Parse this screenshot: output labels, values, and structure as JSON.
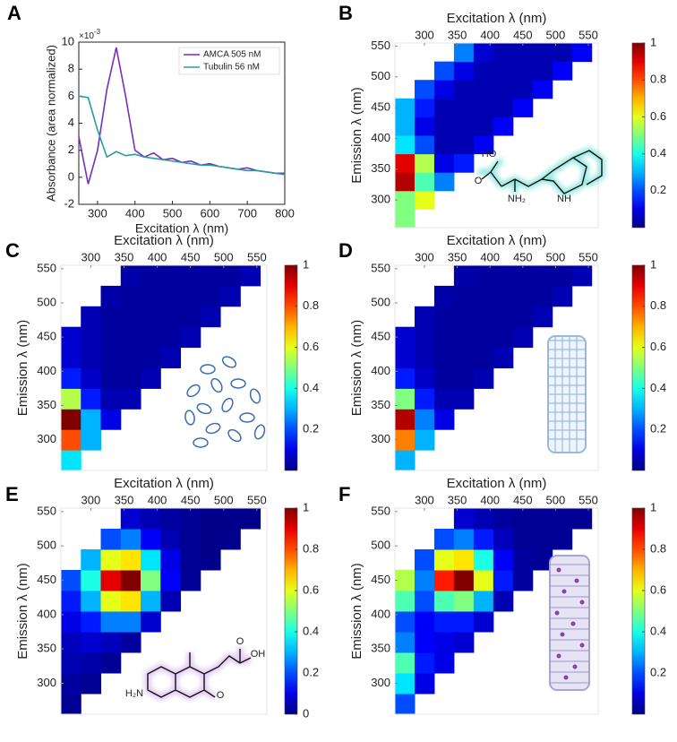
{
  "chart_data": [
    {
      "type": "line",
      "panel_label": "A",
      "x_label": "Excitation λ (nm)",
      "y_label": "Absorbance (area normalized)",
      "y_multiplier": {
        "base": "×10",
        "exponent": "-3"
      },
      "x": [
        250,
        275,
        300,
        325,
        350,
        375,
        400,
        425,
        450,
        475,
        500,
        525,
        550,
        575,
        600,
        625,
        650,
        675,
        700,
        725,
        750,
        775,
        800
      ],
      "series": [
        {
          "name": "AMCA 505 nM",
          "color": "#7a2cc0",
          "values": [
            3,
            -0.5,
            2,
            6.5,
            9.6,
            6,
            2,
            1.5,
            1.8,
            1.3,
            1.4,
            1.1,
            1.2,
            0.9,
            1.0,
            0.8,
            0.7,
            0.6,
            0.7,
            0.5,
            0.4,
            0.3,
            0.3
          ]
        },
        {
          "name": "Tubulin 56 nM",
          "color": "#2a9d9a",
          "values": [
            6,
            5.9,
            3.5,
            1.5,
            1.9,
            1.6,
            1.7,
            1.5,
            1.4,
            1.3,
            1.2,
            1.1,
            1.0,
            0.9,
            0.9,
            0.8,
            0.7,
            0.6,
            0.5,
            0.5,
            0.4,
            0.3,
            0.2
          ]
        }
      ],
      "xlim": [
        250,
        800
      ],
      "xticks": [
        300,
        400,
        500,
        600,
        700,
        800
      ],
      "ylim": [
        -2,
        10
      ],
      "yticks": [
        -2,
        0,
        2,
        4,
        6,
        8,
        10
      ],
      "legend": "upper right"
    },
    {
      "type": "heatmap",
      "panel_label": "B",
      "x_label": "Excitation λ (nm)",
      "y_label": "Emission λ (nm)",
      "x": [
        270,
        300,
        330,
        360,
        390,
        420,
        450,
        480,
        510,
        540
      ],
      "y": [
        270,
        300,
        330,
        360,
        390,
        420,
        450,
        480,
        510,
        540
      ],
      "values": [
        [
          0.5,
          null,
          null,
          null,
          null,
          null,
          null,
          null,
          null,
          null
        ],
        [
          0.5,
          0.6,
          null,
          null,
          null,
          null,
          null,
          null,
          null,
          null
        ],
        [
          0.95,
          0.45,
          0.25,
          null,
          null,
          null,
          null,
          null,
          null,
          null
        ],
        [
          0.9,
          0.55,
          0.1,
          0.15,
          null,
          null,
          null,
          null,
          null,
          null
        ],
        [
          0.35,
          0.2,
          0.05,
          0.05,
          0.12,
          null,
          null,
          null,
          null,
          null
        ],
        [
          0.3,
          0.1,
          0.05,
          0.05,
          0.05,
          0.12,
          null,
          null,
          null,
          null
        ],
        [
          0.3,
          0.15,
          0.05,
          0.05,
          0.05,
          0.05,
          0.12,
          null,
          null,
          null
        ],
        [
          null,
          0.2,
          0.1,
          0.05,
          0.05,
          0.05,
          0.05,
          0.12,
          null,
          null
        ],
        [
          null,
          null,
          0.2,
          0.1,
          0.05,
          0.05,
          0.05,
          0.05,
          0.12,
          null
        ],
        [
          null,
          null,
          null,
          0.25,
          0.08,
          0.05,
          0.05,
          0.05,
          0.05,
          0.12
        ]
      ],
      "xlim": [
        255,
        565
      ],
      "xticks": [
        300,
        350,
        400,
        450,
        500,
        550
      ],
      "ylim": [
        255,
        555
      ],
      "yticks": [
        300,
        350,
        400,
        450,
        500,
        550
      ],
      "colormap": "jet",
      "clim": [
        0,
        1
      ],
      "cticks": [
        0.2,
        0.4,
        0.6,
        0.8,
        1
      ],
      "annotations": [
        "HO",
        "O",
        "NH₂",
        "NH"
      ]
    },
    {
      "type": "heatmap",
      "panel_label": "C",
      "x_label": "Excitation λ (nm)",
      "y_label": "Emission λ (nm)",
      "x": [
        270,
        300,
        330,
        360,
        390,
        420,
        450,
        480,
        510,
        540
      ],
      "y": [
        270,
        300,
        330,
        360,
        390,
        420,
        450,
        480,
        510,
        540
      ],
      "values": [
        [
          0.35,
          null,
          null,
          null,
          null,
          null,
          null,
          null,
          null,
          null
        ],
        [
          0.8,
          0.3,
          null,
          null,
          null,
          null,
          null,
          null,
          null,
          null
        ],
        [
          1,
          0.3,
          0.1,
          null,
          null,
          null,
          null,
          null,
          null,
          null
        ],
        [
          0.55,
          0.15,
          0.05,
          0.05,
          null,
          null,
          null,
          null,
          null,
          null
        ],
        [
          0.15,
          0.07,
          0.03,
          0.03,
          0.05,
          null,
          null,
          null,
          null,
          null
        ],
        [
          0.08,
          0.05,
          0.03,
          0.03,
          0.03,
          0.05,
          null,
          null,
          null,
          null
        ],
        [
          0.08,
          0.05,
          0.03,
          0.03,
          0.03,
          0.03,
          0.05,
          null,
          null,
          null
        ],
        [
          null,
          0.05,
          0.03,
          0.03,
          0.03,
          0.03,
          0.03,
          0.05,
          null,
          null
        ],
        [
          null,
          null,
          0.04,
          0.03,
          0.03,
          0.03,
          0.03,
          0.03,
          0.05,
          null
        ],
        [
          null,
          null,
          null,
          0.04,
          0.03,
          0.03,
          0.03,
          0.03,
          0.03,
          0.05
        ]
      ],
      "xlim": [
        255,
        565
      ],
      "xticks": [
        300,
        350,
        400,
        450,
        500,
        550
      ],
      "ylim": [
        255,
        555
      ],
      "yticks": [
        300,
        350,
        400,
        450,
        500,
        550
      ],
      "colormap": "jet",
      "clim": [
        0,
        1
      ],
      "cticks": [
        0.2,
        0.4,
        0.6,
        0.8,
        1
      ]
    },
    {
      "type": "heatmap",
      "panel_label": "D",
      "x_label": "Excitation λ (nm)",
      "y_label": "Emission λ (nm)",
      "x": [
        270,
        300,
        330,
        360,
        390,
        420,
        450,
        480,
        510,
        540
      ],
      "y": [
        270,
        300,
        330,
        360,
        390,
        420,
        450,
        480,
        510,
        540
      ],
      "values": [
        [
          0.3,
          null,
          null,
          null,
          null,
          null,
          null,
          null,
          null,
          null
        ],
        [
          0.75,
          0.3,
          null,
          null,
          null,
          null,
          null,
          null,
          null,
          null
        ],
        [
          0.95,
          0.25,
          0.1,
          null,
          null,
          null,
          null,
          null,
          null,
          null
        ],
        [
          0.5,
          0.15,
          0.05,
          0.05,
          null,
          null,
          null,
          null,
          null,
          null
        ],
        [
          0.15,
          0.07,
          0.03,
          0.03,
          0.05,
          null,
          null,
          null,
          null,
          null
        ],
        [
          0.08,
          0.05,
          0.03,
          0.03,
          0.03,
          0.05,
          null,
          null,
          null,
          null
        ],
        [
          0.08,
          0.05,
          0.03,
          0.03,
          0.03,
          0.03,
          0.05,
          null,
          null,
          null
        ],
        [
          null,
          0.05,
          0.03,
          0.03,
          0.03,
          0.03,
          0.03,
          0.05,
          null,
          null
        ],
        [
          null,
          null,
          0.04,
          0.03,
          0.03,
          0.03,
          0.03,
          0.03,
          0.05,
          null
        ],
        [
          null,
          null,
          null,
          0.04,
          0.03,
          0.03,
          0.03,
          0.03,
          0.03,
          0.05
        ]
      ],
      "xlim": [
        255,
        565
      ],
      "xticks": [
        300,
        350,
        400,
        450,
        500,
        550
      ],
      "ylim": [
        255,
        555
      ],
      "yticks": [
        300,
        350,
        400,
        450,
        500,
        550
      ],
      "colormap": "jet",
      "clim": [
        0,
        1
      ],
      "cticks": [
        0.2,
        0.4,
        0.6,
        0.8,
        1
      ]
    },
    {
      "type": "heatmap",
      "panel_label": "E",
      "x_label": "Excitation λ (nm)",
      "y_label": "Emission λ (nm)",
      "x": [
        270,
        300,
        330,
        360,
        390,
        420,
        450,
        480,
        510,
        540
      ],
      "y": [
        270,
        300,
        330,
        360,
        390,
        420,
        450,
        480,
        510,
        540
      ],
      "values": [
        [
          0.02,
          null,
          null,
          null,
          null,
          null,
          null,
          null,
          null,
          null
        ],
        [
          0.03,
          0.02,
          null,
          null,
          null,
          null,
          null,
          null,
          null,
          null
        ],
        [
          0.05,
          0.04,
          0.02,
          null,
          null,
          null,
          null,
          null,
          null,
          null
        ],
        [
          0.06,
          0.08,
          0.06,
          0.03,
          null,
          null,
          null,
          null,
          null,
          null
        ],
        [
          0.1,
          0.15,
          0.25,
          0.25,
          0.08,
          null,
          null,
          null,
          null,
          null
        ],
        [
          0.15,
          0.3,
          0.6,
          0.65,
          0.3,
          0.05,
          null,
          null,
          null,
          null
        ],
        [
          0.2,
          0.4,
          0.9,
          1,
          0.5,
          0.12,
          0.02,
          null,
          null,
          null
        ],
        [
          null,
          0.3,
          0.6,
          0.65,
          0.35,
          0.1,
          0.02,
          0.01,
          null,
          null
        ],
        [
          null,
          null,
          0.2,
          0.25,
          0.12,
          0.05,
          0.02,
          0.01,
          0.01,
          null
        ],
        [
          null,
          null,
          null,
          0.08,
          0.05,
          0.03,
          0.02,
          0.01,
          0.01,
          0.01
        ]
      ],
      "xlim": [
        255,
        565
      ],
      "xticks": [
        300,
        350,
        400,
        450,
        500,
        550
      ],
      "ylim": [
        255,
        555
      ],
      "yticks": [
        300,
        350,
        400,
        450,
        500,
        550
      ],
      "colormap": "jet",
      "clim": [
        0,
        1
      ],
      "cticks": [
        0,
        0.2,
        0.4,
        0.6,
        0.8,
        1
      ],
      "annotations": [
        "H₂N",
        "O",
        "O",
        "OH"
      ]
    },
    {
      "type": "heatmap",
      "panel_label": "F",
      "x_label": "Excitation λ (nm)",
      "y_label": "Emission λ (nm)",
      "x": [
        270,
        300,
        330,
        360,
        390,
        420,
        450,
        480,
        510,
        540
      ],
      "y": [
        270,
        300,
        330,
        360,
        390,
        420,
        450,
        480,
        510,
        540
      ],
      "values": [
        [
          0.2,
          null,
          null,
          null,
          null,
          null,
          null,
          null,
          null,
          null
        ],
        [
          0.35,
          0.1,
          null,
          null,
          null,
          null,
          null,
          null,
          null,
          null
        ],
        [
          0.45,
          0.15,
          0.1,
          null,
          null,
          null,
          null,
          null,
          null,
          null
        ],
        [
          0.25,
          0.12,
          0.1,
          0.08,
          null,
          null,
          null,
          null,
          null,
          null
        ],
        [
          0.2,
          0.12,
          0.15,
          0.15,
          0.08,
          null,
          null,
          null,
          null,
          null
        ],
        [
          0.45,
          0.2,
          0.45,
          0.5,
          0.3,
          0.05,
          null,
          null,
          null,
          null
        ],
        [
          0.55,
          0.25,
          0.85,
          1,
          0.6,
          0.15,
          0.03,
          null,
          null,
          null
        ],
        [
          null,
          0.2,
          0.6,
          0.65,
          0.4,
          0.12,
          0.03,
          0.02,
          null,
          null
        ],
        [
          null,
          null,
          0.2,
          0.25,
          0.15,
          0.06,
          0.02,
          0.02,
          0.02,
          null
        ],
        [
          null,
          null,
          null,
          0.08,
          0.05,
          0.03,
          0.02,
          0.02,
          0.02,
          0.02
        ]
      ],
      "xlim": [
        255,
        565
      ],
      "xticks": [
        300,
        350,
        400,
        450,
        500,
        550
      ],
      "ylim": [
        255,
        555
      ],
      "yticks": [
        300,
        350,
        400,
        450,
        500,
        550
      ],
      "colormap": "jet",
      "clim": [
        0,
        1
      ],
      "cticks": [
        0.2,
        0.4,
        0.6,
        0.8,
        1
      ]
    }
  ]
}
